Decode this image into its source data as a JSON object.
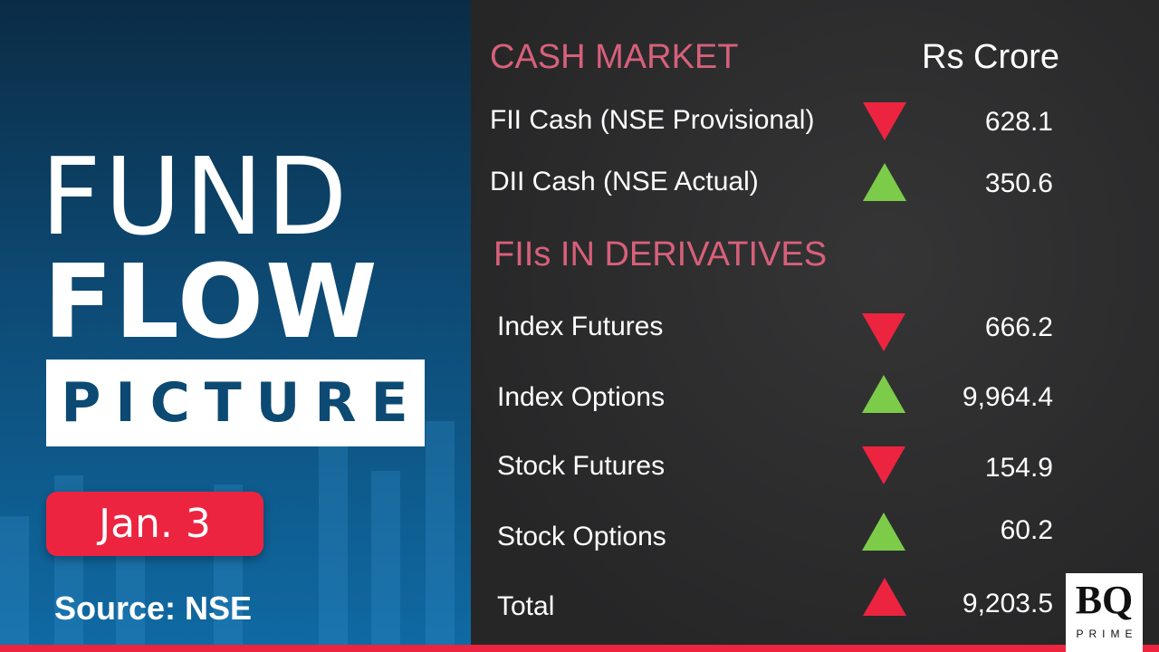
{
  "title": {
    "line1": "FUND",
    "line2": "FLOW",
    "line3": "PICTURE"
  },
  "date": "Jan. 3",
  "source": "Source: NSE",
  "cash_market": {
    "heading": "CASH MARKET",
    "unit": "Rs Crore",
    "rows": [
      {
        "label": "FII Cash (NSE Provisional)",
        "direction": "down",
        "value": "628.1"
      },
      {
        "label": "DII Cash (NSE Actual)",
        "direction": "up",
        "value": "350.6"
      }
    ]
  },
  "derivatives": {
    "heading": "FIIs IN DERIVATIVES",
    "rows": [
      {
        "label": "Index Futures",
        "direction": "down",
        "value": "666.2"
      },
      {
        "label": "Index Options",
        "direction": "up",
        "value": "9,964.4"
      },
      {
        "label": "Stock Futures",
        "direction": "down",
        "value": "154.9"
      },
      {
        "label": "Stock Options",
        "direction": "up",
        "value": "60.2"
      },
      {
        "label": "Total",
        "direction": "up",
        "value": "9,203.5"
      }
    ]
  },
  "logo": {
    "main": "BQ",
    "sub": "PRIME"
  },
  "colors": {
    "down": "#ec2440",
    "up": "#7ccc4a",
    "total_up": "#ec2440",
    "heading": "#d8607a"
  }
}
